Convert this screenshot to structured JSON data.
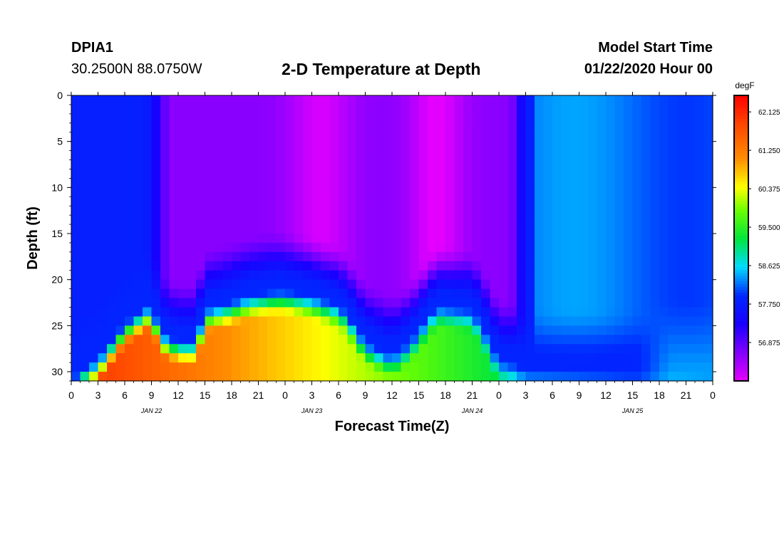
{
  "header": {
    "station": "DPIA1",
    "coords": "30.2500N 88.0750W",
    "title": "2-D Temperature at Depth",
    "model_start_label": "Model Start Time",
    "model_start_value": "01/22/2020 Hour 00"
  },
  "chart_data": {
    "type": "heatmap",
    "title": "2-D Temperature at Depth",
    "xlabel": "Forecast Time(Z)",
    "ylabel": "Depth (ft)",
    "x_range_hours": [
      0,
      72
    ],
    "y_range_ft": [
      0,
      31
    ],
    "x_ticks_hours": [
      0,
      3,
      6,
      9,
      12,
      15,
      18,
      21,
      24,
      27,
      30,
      33,
      36,
      39,
      42,
      45,
      48,
      51,
      54,
      57,
      60,
      63,
      66,
      69,
      72
    ],
    "x_tick_labels": [
      "0",
      "3",
      "6",
      "9",
      "12",
      "15",
      "18",
      "21",
      "0",
      "3",
      "6",
      "9",
      "12",
      "15",
      "18",
      "21",
      "0",
      "3",
      "6",
      "9",
      "12",
      "15",
      "18",
      "21",
      "0"
    ],
    "date_labels": [
      {
        "text": "JAN 22",
        "hour": 9
      },
      {
        "text": "JAN 23",
        "hour": 27
      },
      {
        "text": "JAN 24",
        "hour": 45
      },
      {
        "text": "JAN 25",
        "hour": 63
      }
    ],
    "y_ticks": [
      0,
      5,
      10,
      15,
      20,
      25,
      30
    ],
    "y_tick_labels": [
      "0",
      "5",
      "10",
      "15",
      "20",
      "25",
      "30"
    ],
    "colorbar": {
      "unit": "degF",
      "min": 56.0,
      "max": 62.5,
      "ticks": [
        62.125,
        61.25,
        60.375,
        59.5,
        58.625,
        57.75,
        56.875
      ],
      "tick_labels": [
        "62.125",
        "61.250",
        "60.375",
        "59.500",
        "58.625",
        "57.750",
        "56.875"
      ]
    },
    "approx_field": {
      "cold_layer_temp": 56.6,
      "coldest_temp_hour": 41,
      "coldest_temp": 56.0,
      "warm_bottom_temp": 62.0,
      "late_period_temp": 58.2
    }
  }
}
